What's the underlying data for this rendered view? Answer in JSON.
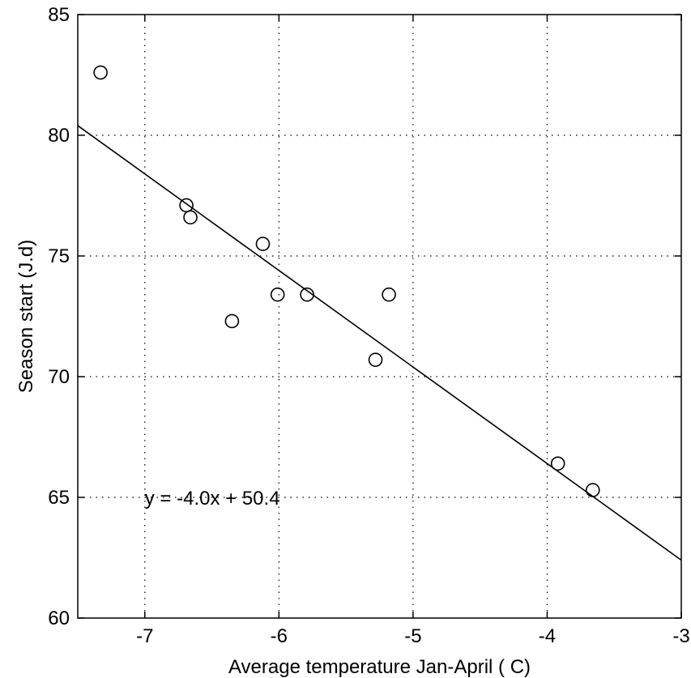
{
  "chart_data": {
    "type": "scatter",
    "title": "",
    "xlabel": "Average temperature Jan-April ( C)",
    "ylabel": "Season start (J.d)",
    "xlim": [
      -7.5,
      -3
    ],
    "ylim": [
      60,
      85
    ],
    "xticks": [
      -7,
      -6,
      -5,
      -4,
      -3
    ],
    "xtick_labels": [
      "-7",
      "-6",
      "-5",
      "-4",
      "-3"
    ],
    "yticks": [
      60,
      65,
      70,
      75,
      80,
      85
    ],
    "ytick_labels": [
      "60",
      "65",
      "70",
      "75",
      "80",
      "85"
    ],
    "grid": true,
    "series": [
      {
        "marker": "circle",
        "points": [
          {
            "x": -7.33,
            "y": 82.6
          },
          {
            "x": -6.69,
            "y": 77.1
          },
          {
            "x": -6.66,
            "y": 76.6
          },
          {
            "x": -6.35,
            "y": 72.3
          },
          {
            "x": -6.12,
            "y": 75.5
          },
          {
            "x": -6.01,
            "y": 73.4
          },
          {
            "x": -5.79,
            "y": 73.4
          },
          {
            "x": -5.28,
            "y": 70.7
          },
          {
            "x": -5.18,
            "y": 73.4
          },
          {
            "x": -3.92,
            "y": 66.4
          },
          {
            "x": -3.66,
            "y": 65.3
          }
        ]
      }
    ],
    "fit_line": {
      "slope": -4.0,
      "intercept": 50.4
    },
    "annotation": {
      "text": "y = -4.0x + 50.4",
      "x": -7.0,
      "y": 65.0
    }
  }
}
